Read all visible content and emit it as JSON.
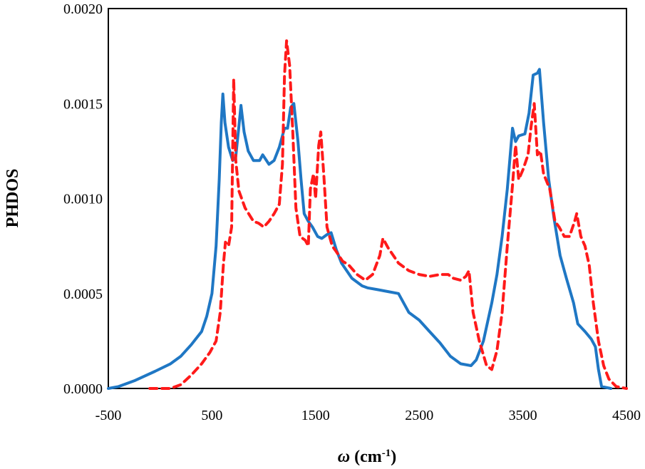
{
  "chart_data": {
    "type": "line",
    "title": "",
    "xlabel": {
      "var": "ω",
      "text": " (cm",
      "sup": "-1",
      "close": ")"
    },
    "ylabel": "PHDOS",
    "xlim": [
      -500,
      4500
    ],
    "ylim": [
      0,
      0.002
    ],
    "xticks": [
      -500,
      500,
      1500,
      2500,
      3500,
      4500
    ],
    "yticks": [
      0.0,
      0.0005,
      0.001,
      0.0015,
      0.002
    ],
    "xtick_labels": [
      "-500",
      "500",
      "1500",
      "2500",
      "3500",
      "4500"
    ],
    "ytick_labels": [
      "0.0000",
      "0.0005",
      "0.0010",
      "0.0015",
      "0.0020"
    ],
    "grid": false,
    "legend": "none",
    "series": [
      {
        "name": "solid-blue",
        "color": "#1f77c4",
        "dash": "solid",
        "points": [
          [
            -500,
            0
          ],
          [
            -400,
            1e-05
          ],
          [
            -250,
            4e-05
          ],
          [
            -50,
            9e-05
          ],
          [
            100,
            0.00013
          ],
          [
            200,
            0.00017
          ],
          [
            300,
            0.00023
          ],
          [
            400,
            0.0003
          ],
          [
            450,
            0.00038
          ],
          [
            500,
            0.0005
          ],
          [
            540,
            0.00075
          ],
          [
            570,
            0.0011
          ],
          [
            590,
            0.0014
          ],
          [
            605,
            0.00155
          ],
          [
            625,
            0.0014
          ],
          [
            660,
            0.00127
          ],
          [
            700,
            0.0012
          ],
          [
            730,
            0.00122
          ],
          [
            760,
            0.00138
          ],
          [
            780,
            0.00149
          ],
          [
            810,
            0.00135
          ],
          [
            850,
            0.00125
          ],
          [
            900,
            0.0012
          ],
          [
            960,
            0.0012
          ],
          [
            990,
            0.00123
          ],
          [
            1050,
            0.00118
          ],
          [
            1100,
            0.0012
          ],
          [
            1150,
            0.00127
          ],
          [
            1200,
            0.00137
          ],
          [
            1230,
            0.00137
          ],
          [
            1260,
            0.00148
          ],
          [
            1290,
            0.0015
          ],
          [
            1330,
            0.0013
          ],
          [
            1360,
            0.0011
          ],
          [
            1390,
            0.00092
          ],
          [
            1430,
            0.00088
          ],
          [
            1470,
            0.00085
          ],
          [
            1520,
            0.0008
          ],
          [
            1560,
            0.00079
          ],
          [
            1610,
            0.00081
          ],
          [
            1650,
            0.00082
          ],
          [
            1700,
            0.00073
          ],
          [
            1750,
            0.00066
          ],
          [
            1850,
            0.00058
          ],
          [
            1950,
            0.00054
          ],
          [
            2000,
            0.00053
          ],
          [
            2100,
            0.00052
          ],
          [
            2200,
            0.00051
          ],
          [
            2300,
            0.0005
          ],
          [
            2400,
            0.0004
          ],
          [
            2500,
            0.00036
          ],
          [
            2600,
            0.0003
          ],
          [
            2700,
            0.00024
          ],
          [
            2800,
            0.00017
          ],
          [
            2900,
            0.00013
          ],
          [
            3000,
            0.00012
          ],
          [
            3050,
            0.00015
          ],
          [
            3120,
            0.00025
          ],
          [
            3200,
            0.00045
          ],
          [
            3250,
            0.0006
          ],
          [
            3300,
            0.0008
          ],
          [
            3350,
            0.00105
          ],
          [
            3400,
            0.00137
          ],
          [
            3430,
            0.0013
          ],
          [
            3460,
            0.00133
          ],
          [
            3520,
            0.00134
          ],
          [
            3560,
            0.00145
          ],
          [
            3600,
            0.00165
          ],
          [
            3640,
            0.00166
          ],
          [
            3660,
            0.00168
          ],
          [
            3700,
            0.0014
          ],
          [
            3750,
            0.0011
          ],
          [
            3800,
            0.0009
          ],
          [
            3860,
            0.0007
          ],
          [
            3920,
            0.00058
          ],
          [
            3990,
            0.00045
          ],
          [
            4030,
            0.00034
          ],
          [
            4100,
            0.0003
          ],
          [
            4160,
            0.00026
          ],
          [
            4200,
            0.00022
          ],
          [
            4230,
            0.0001
          ],
          [
            4260,
            1e-05
          ],
          [
            4350,
            0
          ]
        ]
      },
      {
        "name": "dashed-red",
        "color": "#ff1a1a",
        "dash": "dashed",
        "points": [
          [
            -100,
            0
          ],
          [
            100,
            0
          ],
          [
            200,
            2e-05
          ],
          [
            300,
            7e-05
          ],
          [
            400,
            0.00013
          ],
          [
            480,
            0.00019
          ],
          [
            540,
            0.00025
          ],
          [
            580,
            0.0004
          ],
          [
            610,
            0.00065
          ],
          [
            630,
            0.00077
          ],
          [
            660,
            0.00075
          ],
          [
            690,
            0.00085
          ],
          [
            710,
            0.00163
          ],
          [
            730,
            0.0012
          ],
          [
            760,
            0.00104
          ],
          [
            820,
            0.00095
          ],
          [
            900,
            0.00088
          ],
          [
            950,
            0.00087
          ],
          [
            1000,
            0.00085
          ],
          [
            1050,
            0.00088
          ],
          [
            1100,
            0.00092
          ],
          [
            1150,
            0.00097
          ],
          [
            1180,
            0.00118
          ],
          [
            1200,
            0.00165
          ],
          [
            1220,
            0.00183
          ],
          [
            1250,
            0.0017
          ],
          [
            1280,
            0.00135
          ],
          [
            1310,
            0.00095
          ],
          [
            1350,
            0.0008
          ],
          [
            1400,
            0.00078
          ],
          [
            1430,
            0.00075
          ],
          [
            1450,
            0.00105
          ],
          [
            1480,
            0.00113
          ],
          [
            1500,
            0.001
          ],
          [
            1530,
            0.00128
          ],
          [
            1550,
            0.00135
          ],
          [
            1580,
            0.00112
          ],
          [
            1610,
            0.00085
          ],
          [
            1660,
            0.00075
          ],
          [
            1700,
            0.00072
          ],
          [
            1760,
            0.00067
          ],
          [
            1820,
            0.00065
          ],
          [
            1900,
            0.0006
          ],
          [
            1980,
            0.00057
          ],
          [
            2050,
            0.0006
          ],
          [
            2120,
            0.0007
          ],
          [
            2150,
            0.00079
          ],
          [
            2200,
            0.00074
          ],
          [
            2300,
            0.00066
          ],
          [
            2400,
            0.00062
          ],
          [
            2500,
            0.0006
          ],
          [
            2600,
            0.00059
          ],
          [
            2700,
            0.0006
          ],
          [
            2780,
            0.0006
          ],
          [
            2830,
            0.00058
          ],
          [
            2900,
            0.00057
          ],
          [
            2950,
            0.00059
          ],
          [
            2980,
            0.00062
          ],
          [
            3020,
            0.0004
          ],
          [
            3080,
            0.00025
          ],
          [
            3150,
            0.00012
          ],
          [
            3200,
            0.0001
          ],
          [
            3250,
            0.0002
          ],
          [
            3300,
            0.0004
          ],
          [
            3350,
            0.00075
          ],
          [
            3400,
            0.00107
          ],
          [
            3430,
            0.00128
          ],
          [
            3460,
            0.0011
          ],
          [
            3500,
            0.00115
          ],
          [
            3550,
            0.00123
          ],
          [
            3580,
            0.00138
          ],
          [
            3610,
            0.0015
          ],
          [
            3640,
            0.00123
          ],
          [
            3670,
            0.00125
          ],
          [
            3700,
            0.00113
          ],
          [
            3760,
            0.00105
          ],
          [
            3810,
            0.00088
          ],
          [
            3850,
            0.00085
          ],
          [
            3900,
            0.0008
          ],
          [
            3950,
            0.0008
          ],
          [
            4000,
            0.00088
          ],
          [
            4020,
            0.00092
          ],
          [
            4060,
            0.0008
          ],
          [
            4100,
            0.00075
          ],
          [
            4140,
            0.00065
          ],
          [
            4180,
            0.00045
          ],
          [
            4230,
            0.00025
          ],
          [
            4280,
            0.00012
          ],
          [
            4330,
            5e-05
          ],
          [
            4400,
            1e-05
          ],
          [
            4500,
            0
          ]
        ]
      }
    ]
  }
}
